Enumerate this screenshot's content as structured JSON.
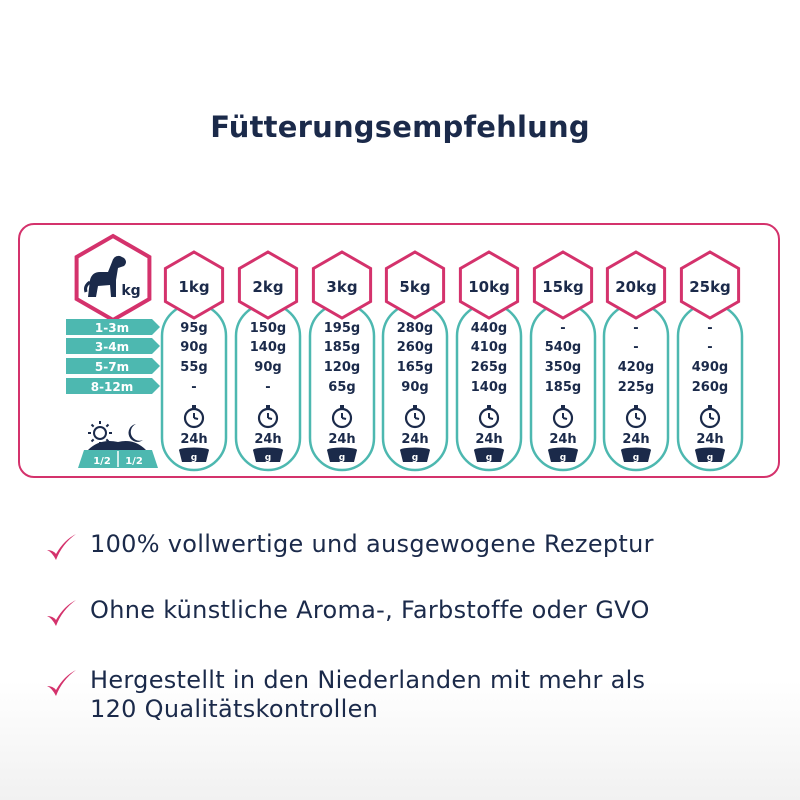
{
  "title": "Fütterungsempfehlung",
  "colors": {
    "accent": "#d4326c",
    "teal": "#4db8b0",
    "navy": "#1b2a4a"
  },
  "header_unit": "kg",
  "weights": [
    "1kg",
    "2kg",
    "3kg",
    "5kg",
    "10kg",
    "15kg",
    "20kg",
    "25kg"
  ],
  "age_groups": [
    "1-3m",
    "3-4m",
    "5-7m",
    "8-12m"
  ],
  "values": [
    [
      "95g",
      "150g",
      "195g",
      "280g",
      "440g",
      "-",
      "-",
      "-"
    ],
    [
      "90g",
      "140g",
      "185g",
      "260g",
      "410g",
      "540g",
      "-",
      "-"
    ],
    [
      "55g",
      "90g",
      "120g",
      "165g",
      "265g",
      "350g",
      "420g",
      "490g"
    ],
    [
      "-",
      "-",
      "65g",
      "90g",
      "140g",
      "185g",
      "225g",
      "260g"
    ]
  ],
  "duration": "24h",
  "bowl_unit": "g",
  "day_night_split": [
    "1/2",
    "1/2"
  ],
  "icons": {
    "dog": "dog-icon",
    "clock": "clock-icon",
    "bowl": "bowl-icon",
    "sun": "sun-icon",
    "moon": "moon-icon",
    "check": "checkmark-icon"
  },
  "benefits": [
    "100% vollwertige und ausgewogene Rezeptur",
    "Ohne künstliche Aroma-, Farbstoffe oder GVO",
    "Hergestellt in den Niederlanden mit mehr als\n120 Qualitätskontrollen"
  ]
}
